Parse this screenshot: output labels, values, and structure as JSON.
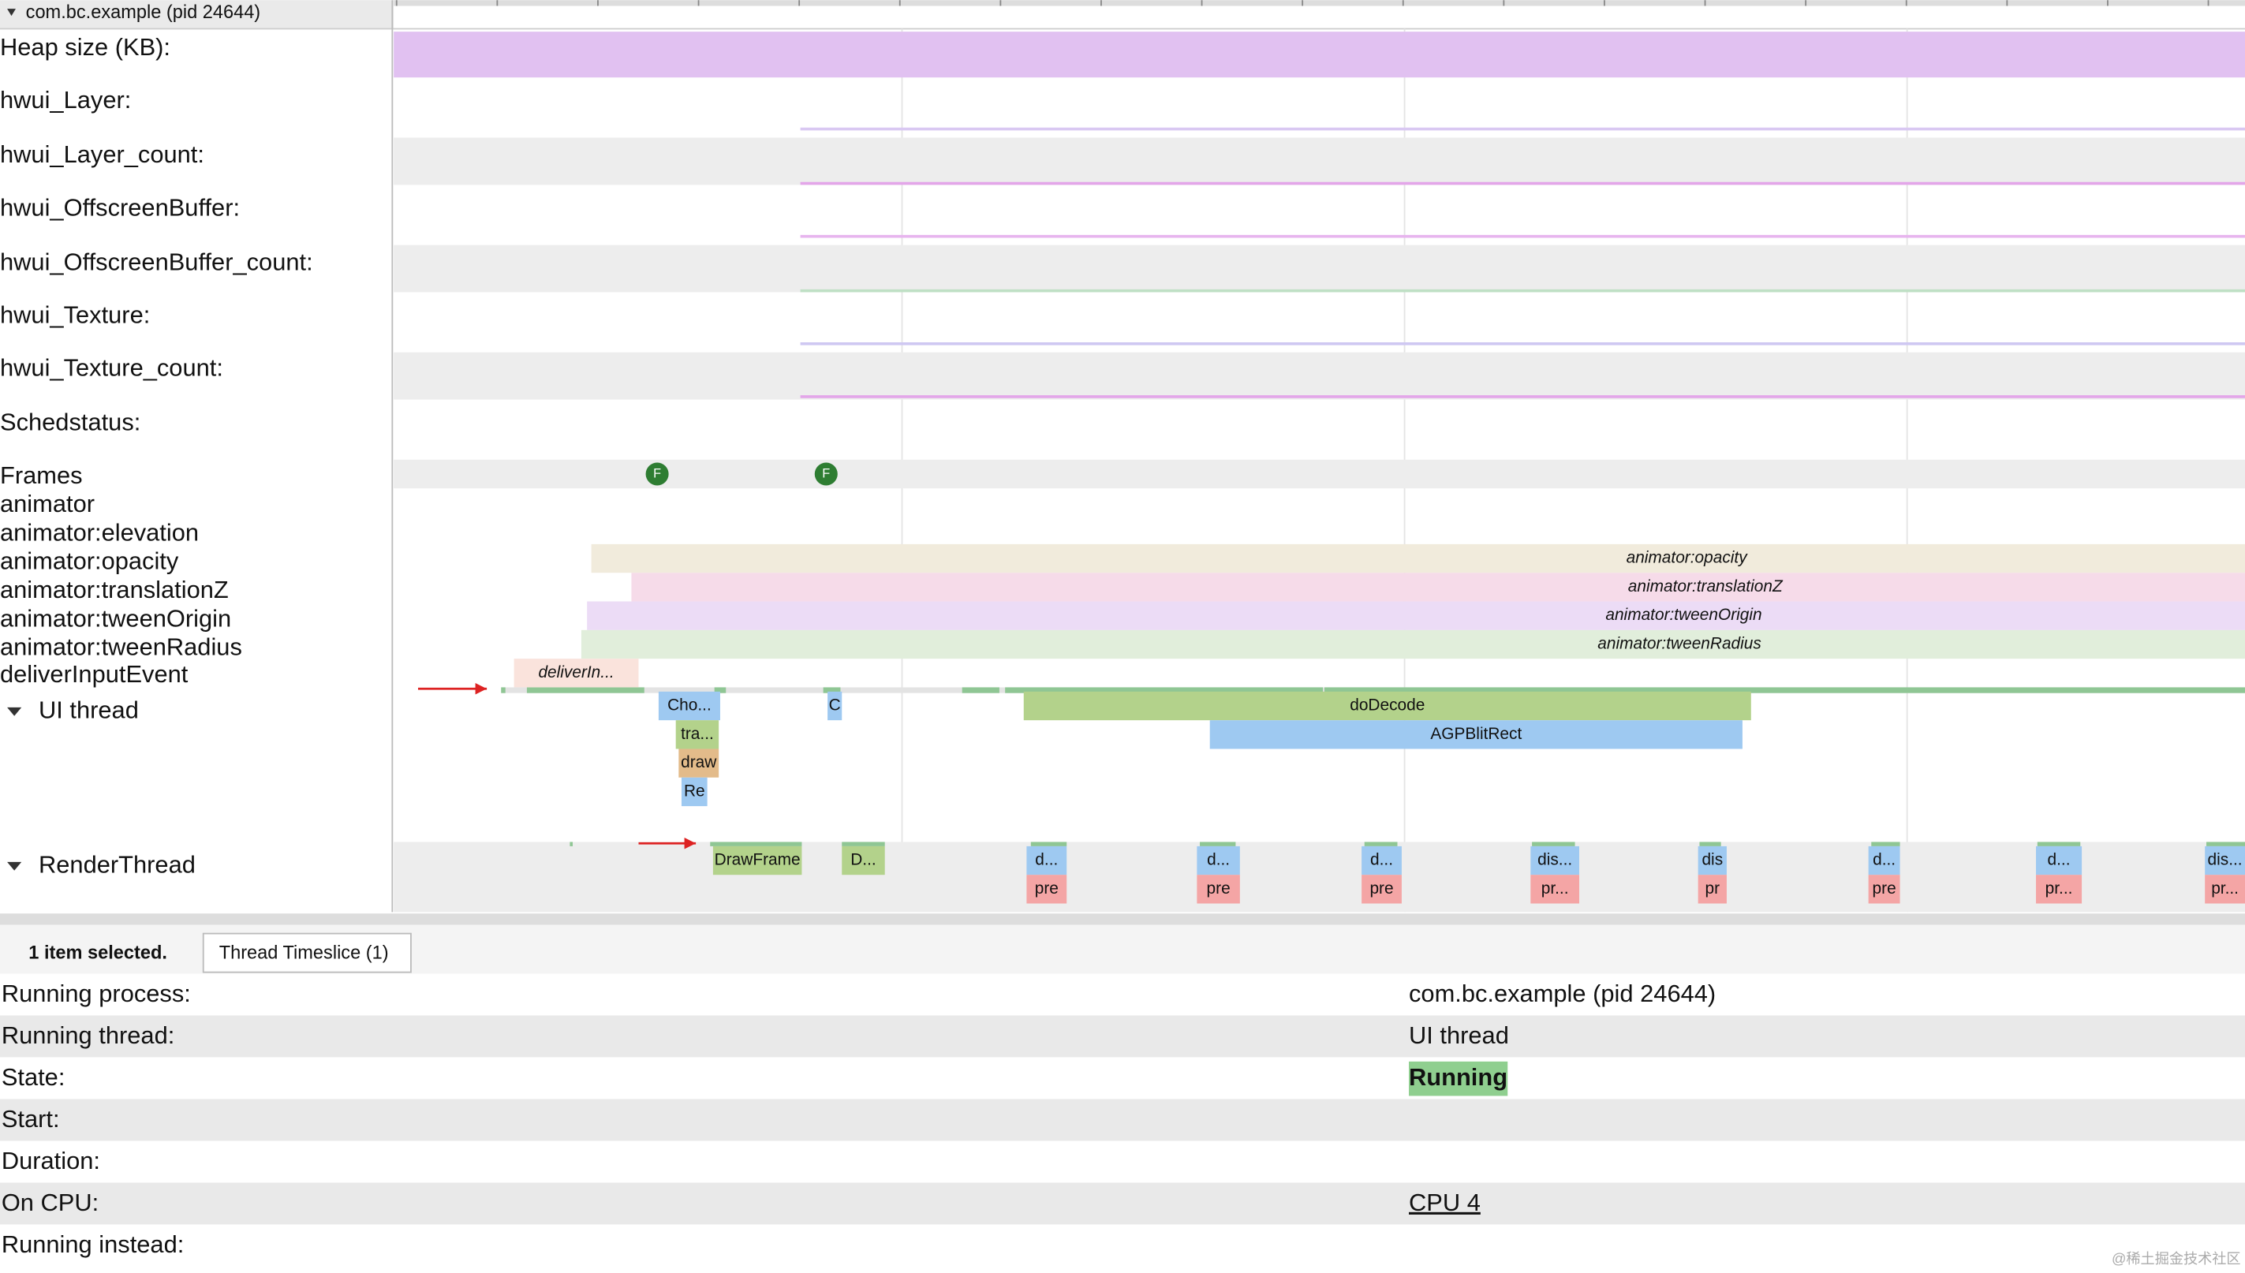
{
  "process": {
    "title": "com.bc.example (pid 24644)"
  },
  "tracks": [
    "Heap size (KB):",
    "hwui_Layer:",
    "hwui_Layer_count:",
    "hwui_OffscreenBuffer:",
    "hwui_OffscreenBuffer_count:",
    "hwui_Texture:",
    "hwui_Texture_count:",
    "Schedstatus:",
    "Frames",
    "animator",
    "animator:elevation",
    "animator:opacity",
    "animator:translationZ",
    "animator:tweenOrigin",
    "animator:tweenRadius",
    "deliverInputEvent",
    "UI thread",
    "RenderThread"
  ],
  "frame_markers": [
    "F",
    "F"
  ],
  "slices": [
    "animator:opacity",
    "animator:translationZ",
    "animator:tweenOrigin",
    "animator:tweenRadius",
    "deliverIn...",
    "Cho...",
    "tra...",
    "draw",
    "Re",
    "C",
    "doDecode",
    "AGPBlitRect",
    "DrawFrame",
    "D...",
    "d...",
    "pre",
    "d...",
    "pre",
    "d...",
    "pre",
    "dis...",
    "pr...",
    "dis",
    "pr",
    "d...",
    "pre",
    "d...",
    "pr...",
    "dis...",
    "pr..."
  ],
  "details": {
    "tabs": [
      "1 item selected.",
      "Thread Timeslice (1)"
    ],
    "rows": [
      [
        "Running process:",
        "com.bc.example (pid 24644)"
      ],
      [
        "Running thread:",
        "UI thread"
      ],
      [
        "State:",
        "Running"
      ],
      [
        "Start:"
      ],
      [
        "Duration:"
      ],
      [
        "On CPU:",
        "CPU 4"
      ],
      [
        "Running instead:"
      ]
    ]
  },
  "watermark": "@稀土掘金技术社区"
}
